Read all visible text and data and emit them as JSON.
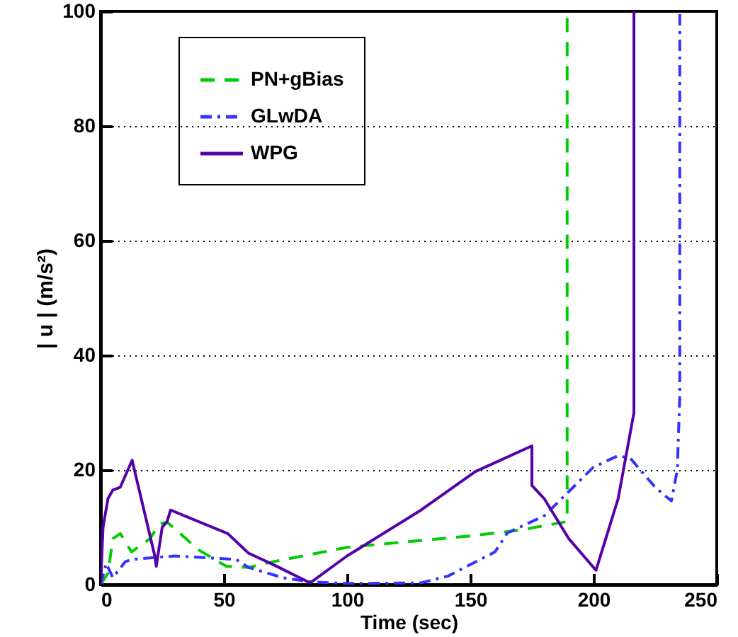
{
  "chart_data": {
    "type": "line",
    "xlabel": "Time (sec)",
    "ylabel": "| u | (m/s²)",
    "xlim": [
      0,
      250
    ],
    "xticks": [
      0,
      50,
      100,
      150,
      200,
      250
    ],
    "ylim": [
      0,
      100
    ],
    "yticks": [
      0,
      20,
      40,
      60,
      80,
      100
    ],
    "grid": "y",
    "legend": "top left",
    "marker": "none",
    "series": [
      {
        "name": "PN+gBias",
        "color": "#00cc00",
        "line_style": "dashed",
        "x": [
          0,
          3,
          5,
          8,
          12.6,
          20,
          24,
          27,
          40,
          51,
          60,
          70,
          100,
          150,
          170,
          189.3,
          189.3
        ],
        "values": [
          0,
          2,
          8,
          8.9,
          5.7,
          8,
          10.6,
          10.9,
          6,
          3.2,
          3,
          4,
          6.5,
          8.5,
          9.5,
          11,
          100
        ]
      },
      {
        "name": "GLwDA",
        "color": "#3333ff",
        "line_style": "dashdot",
        "x": [
          0,
          2.3,
          5,
          10,
          12.7,
          30,
          55,
          60,
          74,
          85,
          100,
          130,
          141,
          160,
          165,
          180,
          200,
          210,
          215,
          225,
          231.6,
          234,
          235,
          235
        ],
        "values": [
          0,
          3.7,
          1.2,
          4,
          4.4,
          5,
          4.4,
          3,
          1.2,
          0.5,
          0.2,
          0.3,
          1.5,
          5.7,
          9,
          12,
          20.5,
          22.5,
          22,
          17,
          14.6,
          20,
          33,
          100
        ]
      },
      {
        "name": "WPG",
        "color": "#5500aa",
        "line_style": "solid",
        "x": [
          0,
          1,
          3,
          5,
          8,
          12.8,
          22,
          22.6,
          25,
          27,
          28.4,
          51.6,
          60,
          70,
          85,
          100,
          130,
          152,
          175,
          175,
          180,
          190,
          201,
          210,
          216.4,
          216.4
        ],
        "values": [
          0,
          10,
          15,
          16.5,
          17,
          21.7,
          5,
          3.2,
          10,
          11,
          13,
          8.9,
          5.5,
          3.5,
          0.3,
          5,
          13,
          19.7,
          24.2,
          17.3,
          15,
          8,
          2.5,
          15,
          30,
          100
        ]
      }
    ]
  }
}
